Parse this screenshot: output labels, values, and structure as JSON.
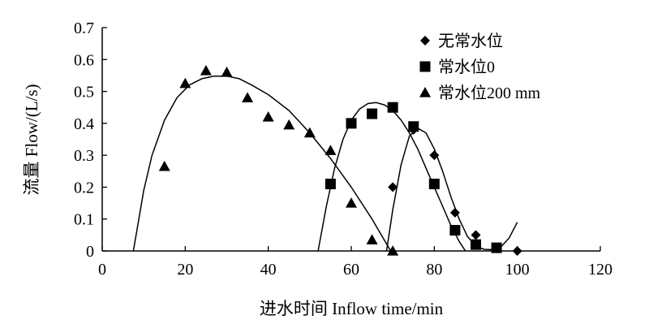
{
  "chart_data": {
    "type": "scatter",
    "xlabel": "进水时间 Inflow time/min",
    "ylabel": "流量 Flow/(L/s)",
    "xlim": [
      0,
      120
    ],
    "ylim": [
      0,
      0.7
    ],
    "xticks": [
      0,
      20,
      40,
      60,
      80,
      100,
      120
    ],
    "yticks": [
      0,
      0.1,
      0.2,
      0.3,
      0.4,
      0.5,
      0.6,
      0.7
    ],
    "ytick_labels": [
      "0",
      "0.1",
      "0.2",
      "0.3",
      "0.4",
      "0.5",
      "0.6",
      "0.7"
    ],
    "grid": false,
    "legend_position": "top-right",
    "series": [
      {
        "name": "无常水位",
        "marker": "diamond",
        "points": [
          [
            70,
            0.2
          ],
          [
            75,
            0.38
          ],
          [
            80,
            0.3
          ],
          [
            85,
            0.12
          ],
          [
            90,
            0.05
          ],
          [
            95,
            0.01
          ],
          [
            100,
            0.0
          ]
        ],
        "fit_curve": [
          [
            68.5,
            0
          ],
          [
            70,
            0.13
          ],
          [
            72,
            0.27
          ],
          [
            74,
            0.36
          ],
          [
            76,
            0.385
          ],
          [
            78,
            0.37
          ],
          [
            80,
            0.32
          ],
          [
            82,
            0.25
          ],
          [
            84,
            0.17
          ],
          [
            86,
            0.1
          ],
          [
            88,
            0.045
          ],
          [
            90,
            0.015
          ],
          [
            92,
            0.005
          ],
          [
            94,
            0.004
          ],
          [
            96,
            0.012
          ],
          [
            98,
            0.04
          ],
          [
            100,
            0.09
          ]
        ]
      },
      {
        "name": "常水位0",
        "marker": "square",
        "points": [
          [
            55,
            0.21
          ],
          [
            60,
            0.4
          ],
          [
            65,
            0.43
          ],
          [
            70,
            0.45
          ],
          [
            75,
            0.39
          ],
          [
            80,
            0.21
          ],
          [
            85,
            0.065
          ],
          [
            90,
            0.02
          ],
          [
            95,
            0.01
          ]
        ],
        "fit_curve": [
          [
            52,
            0
          ],
          [
            54,
            0.14
          ],
          [
            56,
            0.26
          ],
          [
            58,
            0.35
          ],
          [
            60,
            0.41
          ],
          [
            62,
            0.445
          ],
          [
            64,
            0.462
          ],
          [
            66,
            0.465
          ],
          [
            68,
            0.458
          ],
          [
            70,
            0.44
          ],
          [
            72,
            0.41
          ],
          [
            74,
            0.37
          ],
          [
            76,
            0.32
          ],
          [
            78,
            0.26
          ],
          [
            80,
            0.2
          ],
          [
            82,
            0.14
          ],
          [
            84,
            0.08
          ],
          [
            86,
            0.03
          ],
          [
            87.5,
            0
          ]
        ]
      },
      {
        "name": "常水位200 mm",
        "marker": "triangle",
        "points": [
          [
            15,
            0.265
          ],
          [
            20,
            0.525
          ],
          [
            25,
            0.565
          ],
          [
            30,
            0.56
          ],
          [
            35,
            0.48
          ],
          [
            40,
            0.42
          ],
          [
            45,
            0.395
          ],
          [
            50,
            0.37
          ],
          [
            55,
            0.315
          ],
          [
            60,
            0.15
          ],
          [
            65,
            0.035
          ],
          [
            70,
            0.0
          ]
        ],
        "fit_curve": [
          [
            7.5,
            0
          ],
          [
            10,
            0.19
          ],
          [
            12,
            0.3
          ],
          [
            15,
            0.41
          ],
          [
            18,
            0.48
          ],
          [
            21,
            0.52
          ],
          [
            24,
            0.54
          ],
          [
            27,
            0.548
          ],
          [
            30,
            0.548
          ],
          [
            33,
            0.54
          ],
          [
            36,
            0.52
          ],
          [
            40,
            0.49
          ],
          [
            45,
            0.44
          ],
          [
            50,
            0.37
          ],
          [
            55,
            0.29
          ],
          [
            60,
            0.2
          ],
          [
            65,
            0.1
          ],
          [
            69.5,
            0
          ]
        ]
      }
    ]
  }
}
